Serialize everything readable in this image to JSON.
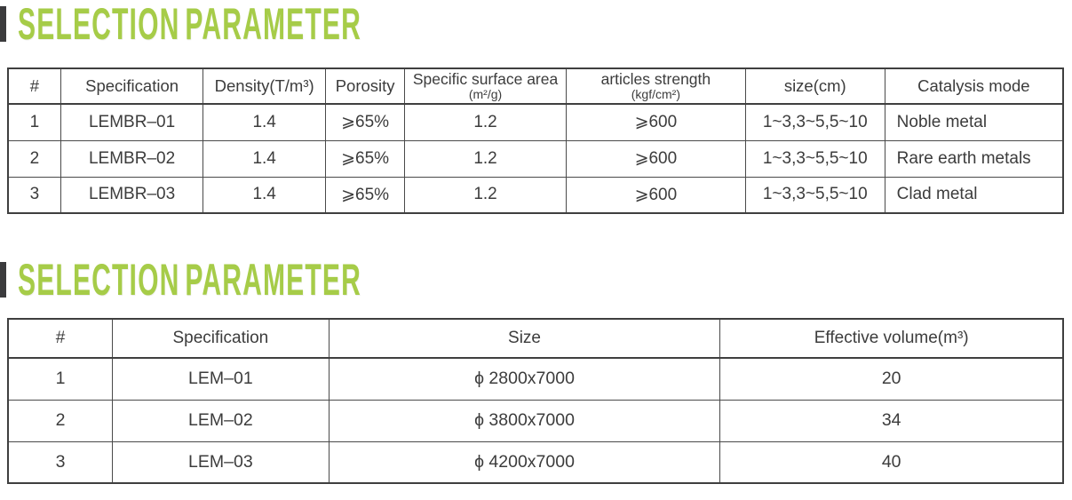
{
  "colors": {
    "accent": "#a6cc48",
    "heading_bar": "#3b3b3d",
    "table_line": "#4a4a4a",
    "table_line_strong": "#3f3f3f",
    "text": "#3c3c3c",
    "background": "#ffffff"
  },
  "sections": [
    {
      "heading": "SELECTION PARAMETER",
      "table": {
        "columns": [
          {
            "label": "#"
          },
          {
            "label": "Specification"
          },
          {
            "label": "Density(T/m³)"
          },
          {
            "label": "Porosity"
          },
          {
            "label": "Specific surface area",
            "sub": "(m²/g)"
          },
          {
            "label": "articles strength",
            "sub": "(kgf/cm²)"
          },
          {
            "label": "size(cm)"
          },
          {
            "label": "Catalysis mode"
          }
        ],
        "rows": [
          [
            "1",
            "LEMBR–01",
            "1.4",
            "⩾65%",
            "1.2",
            "⩾600",
            "1~3,3~5,5~10",
            "Noble metal"
          ],
          [
            "2",
            "LEMBR–02",
            "1.4",
            "⩾65%",
            "1.2",
            "⩾600",
            "1~3,3~5,5~10",
            "Rare earth metals"
          ],
          [
            "3",
            "LEMBR–03",
            "1.4",
            "⩾65%",
            "1.2",
            "⩾600",
            "1~3,3~5,5~10",
            "Clad metal"
          ]
        ]
      }
    },
    {
      "heading": "SELECTION PARAMETER",
      "table": {
        "columns": [
          {
            "label": "#"
          },
          {
            "label": "Specification"
          },
          {
            "label": "Size"
          },
          {
            "label": "Effective volume(m³)"
          }
        ],
        "rows": [
          [
            "1",
            "LEM–01",
            "ϕ 2800x7000",
            "20"
          ],
          [
            "2",
            "LEM–02",
            "ϕ 3800x7000",
            "34"
          ],
          [
            "3",
            "LEM–03",
            "ϕ 4200x7000",
            "40"
          ]
        ]
      }
    }
  ]
}
